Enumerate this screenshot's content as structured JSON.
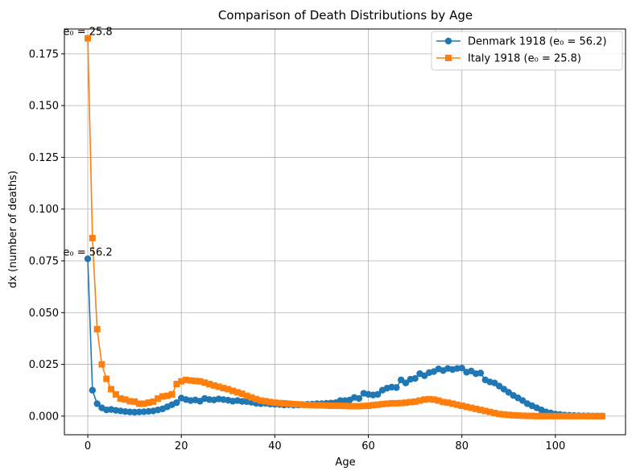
{
  "chart_data": {
    "type": "line",
    "title": "Comparison of Death Distributions by Age",
    "xlabel": "Age",
    "ylabel": "dx (number of deaths)",
    "xlim": [
      -5,
      115
    ],
    "ylim": [
      -0.009,
      0.187
    ],
    "xticks": [
      0,
      20,
      40,
      60,
      80,
      100
    ],
    "xtick_labels": [
      "0",
      "20",
      "40",
      "60",
      "80",
      "100"
    ],
    "yticks": [
      0.0,
      0.025,
      0.05,
      0.075,
      0.1,
      0.125,
      0.15,
      0.175
    ],
    "ytick_labels": [
      "0.000",
      "0.025",
      "0.050",
      "0.075",
      "0.100",
      "0.125",
      "0.150",
      "0.175"
    ],
    "grid": true,
    "legend_position": "top-right",
    "x": [
      0,
      1,
      2,
      3,
      4,
      5,
      6,
      7,
      8,
      9,
      10,
      11,
      12,
      13,
      14,
      15,
      16,
      17,
      18,
      19,
      20,
      21,
      22,
      23,
      24,
      25,
      26,
      27,
      28,
      29,
      30,
      31,
      32,
      33,
      34,
      35,
      36,
      37,
      38,
      39,
      40,
      41,
      42,
      43,
      44,
      45,
      46,
      47,
      48,
      49,
      50,
      51,
      52,
      53,
      54,
      55,
      56,
      57,
      58,
      59,
      60,
      61,
      62,
      63,
      64,
      65,
      66,
      67,
      68,
      69,
      70,
      71,
      72,
      73,
      74,
      75,
      76,
      77,
      78,
      79,
      80,
      81,
      82,
      83,
      84,
      85,
      86,
      87,
      88,
      89,
      90,
      91,
      92,
      93,
      94,
      95,
      96,
      97,
      98,
      99,
      100,
      101,
      102,
      103,
      104,
      105,
      106,
      107,
      108,
      109,
      110
    ],
    "series": [
      {
        "name": "Denmark 1918 (e₀ = 56.2)",
        "color": "#1f77b4",
        "marker": "circle",
        "values": [
          0.076,
          0.0125,
          0.006,
          0.004,
          0.003,
          0.0032,
          0.0028,
          0.0025,
          0.0022,
          0.002,
          0.0019,
          0.002,
          0.0021,
          0.0023,
          0.0025,
          0.003,
          0.0035,
          0.0045,
          0.0055,
          0.0065,
          0.0087,
          0.008,
          0.0075,
          0.0078,
          0.0072,
          0.0085,
          0.008,
          0.0078,
          0.0083,
          0.008,
          0.0077,
          0.0072,
          0.0075,
          0.0071,
          0.007,
          0.0067,
          0.0062,
          0.006,
          0.0062,
          0.0058,
          0.0057,
          0.0056,
          0.0054,
          0.0055,
          0.0053,
          0.0054,
          0.0055,
          0.0057,
          0.0058,
          0.006,
          0.006,
          0.0062,
          0.0063,
          0.0065,
          0.0075,
          0.0075,
          0.0078,
          0.009,
          0.0085,
          0.011,
          0.0105,
          0.0102,
          0.0105,
          0.0125,
          0.0135,
          0.014,
          0.0138,
          0.0175,
          0.016,
          0.0178,
          0.0182,
          0.0205,
          0.0195,
          0.021,
          0.0215,
          0.0228,
          0.022,
          0.023,
          0.0225,
          0.023,
          0.0232,
          0.0212,
          0.0218,
          0.0205,
          0.0208,
          0.0175,
          0.0165,
          0.016,
          0.0145,
          0.013,
          0.0115,
          0.01,
          0.0088,
          0.0075,
          0.006,
          0.005,
          0.004,
          0.003,
          0.002,
          0.0015,
          0.001,
          0.0008,
          0.0005,
          0.0004,
          0.0003,
          0.0002,
          0.0001,
          0.0001,
          0.0,
          0.0,
          0.0
        ]
      },
      {
        "name": "Italy 1918 (e₀ = 25.8)",
        "color": "#ff7f0e",
        "marker": "square",
        "values": [
          0.1825,
          0.086,
          0.042,
          0.025,
          0.018,
          0.013,
          0.0105,
          0.0085,
          0.008,
          0.0072,
          0.007,
          0.006,
          0.006,
          0.0065,
          0.007,
          0.0085,
          0.0095,
          0.0098,
          0.0105,
          0.0155,
          0.0168,
          0.0175,
          0.0172,
          0.017,
          0.0168,
          0.0162,
          0.0155,
          0.0148,
          0.0142,
          0.0135,
          0.013,
          0.0122,
          0.0115,
          0.0108,
          0.0098,
          0.009,
          0.0082,
          0.0075,
          0.0072,
          0.0068,
          0.0065,
          0.0063,
          0.0062,
          0.006,
          0.0058,
          0.0057,
          0.0055,
          0.0054,
          0.0053,
          0.0052,
          0.0052,
          0.0051,
          0.005,
          0.005,
          0.005,
          0.0049,
          0.0048,
          0.0048,
          0.0048,
          0.0049,
          0.005,
          0.0053,
          0.0055,
          0.0058,
          0.006,
          0.0062,
          0.0062,
          0.0063,
          0.0065,
          0.0068,
          0.007,
          0.0075,
          0.008,
          0.0082,
          0.008,
          0.0075,
          0.0068,
          0.0065,
          0.006,
          0.0055,
          0.005,
          0.0045,
          0.004,
          0.0035,
          0.003,
          0.0025,
          0.002,
          0.0015,
          0.001,
          0.0008,
          0.0006,
          0.0004,
          0.0003,
          0.0002,
          0.0001,
          0.0001,
          0.0,
          0.0,
          0.0,
          0.0,
          0.0,
          0.0,
          0.0,
          0.0,
          0.0,
          0.0,
          0.0,
          0.0,
          0.0,
          0.0,
          0.0
        ]
      }
    ],
    "annotations": [
      {
        "text": "e₀ = 25.8",
        "x": 0,
        "y": 0.1825
      },
      {
        "text": "e₀ = 56.2",
        "x": 0,
        "y": 0.076
      }
    ]
  }
}
